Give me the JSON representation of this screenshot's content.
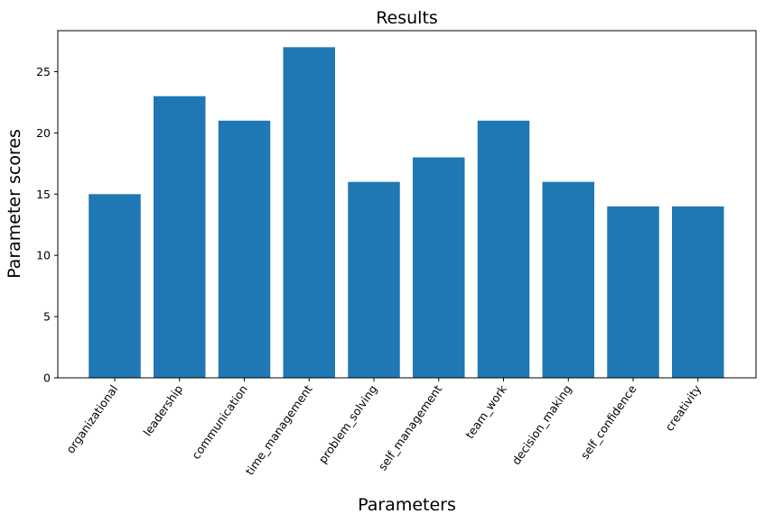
{
  "chart_data": {
    "type": "bar",
    "title": "Results",
    "xlabel": "Parameters",
    "ylabel": "Parameter scores",
    "categories": [
      "organizational",
      "leadership",
      "communication",
      "time_management",
      "problem_solving",
      "self_management",
      "team_work",
      "decision_making",
      "self_confidence",
      "creativity"
    ],
    "values": [
      15,
      23,
      21,
      27,
      16,
      18,
      21,
      16,
      14,
      14
    ],
    "yticks": [
      0,
      5,
      10,
      15,
      20,
      25
    ],
    "ylim": [
      0,
      28.35
    ],
    "grid": false,
    "bar_color": "#1f77b4"
  }
}
